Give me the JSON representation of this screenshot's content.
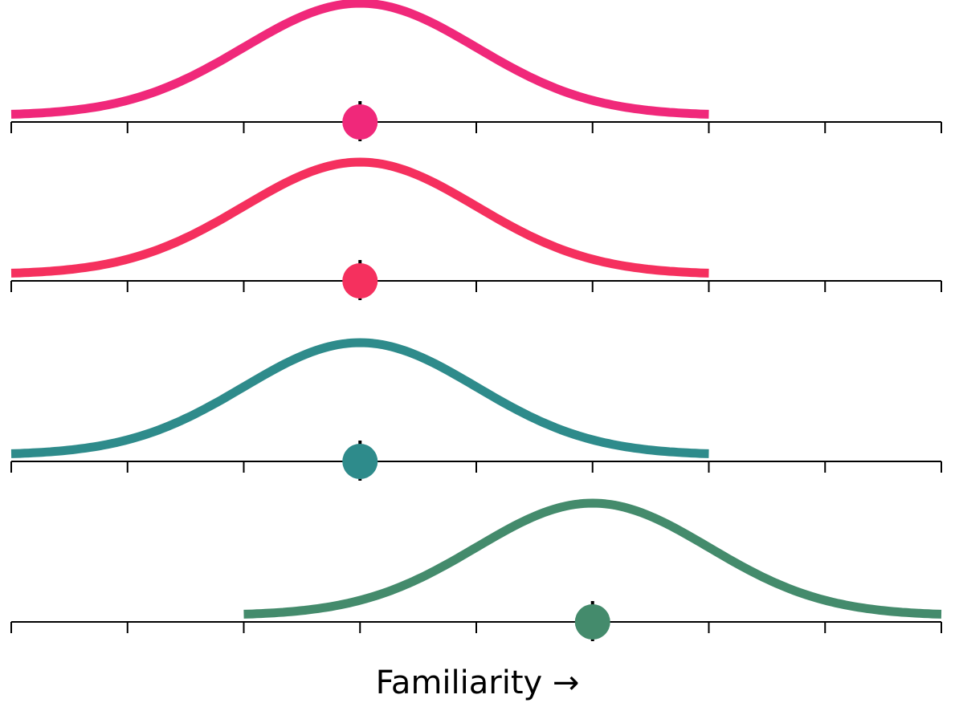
{
  "chart_data": {
    "type": "line",
    "title": "",
    "xlabel": "Familiarity →",
    "ylabel": "",
    "xlim": [
      0,
      8
    ],
    "ticks": [
      0,
      1,
      2,
      3,
      4,
      5,
      6,
      7,
      8
    ],
    "grid": false,
    "panels": [
      {
        "mean": 3,
        "sd": 1,
        "range": [
          0,
          6
        ],
        "color": "#f0287a"
      },
      {
        "mean": 3,
        "sd": 1,
        "range": [
          0,
          6
        ],
        "color": "#f5305e"
      },
      {
        "mean": 3,
        "sd": 1,
        "range": [
          0,
          6
        ],
        "color": "#2e8b8b"
      },
      {
        "mean": 5,
        "sd": 1,
        "range": [
          2,
          8
        ],
        "color": "#448b6c"
      }
    ]
  }
}
